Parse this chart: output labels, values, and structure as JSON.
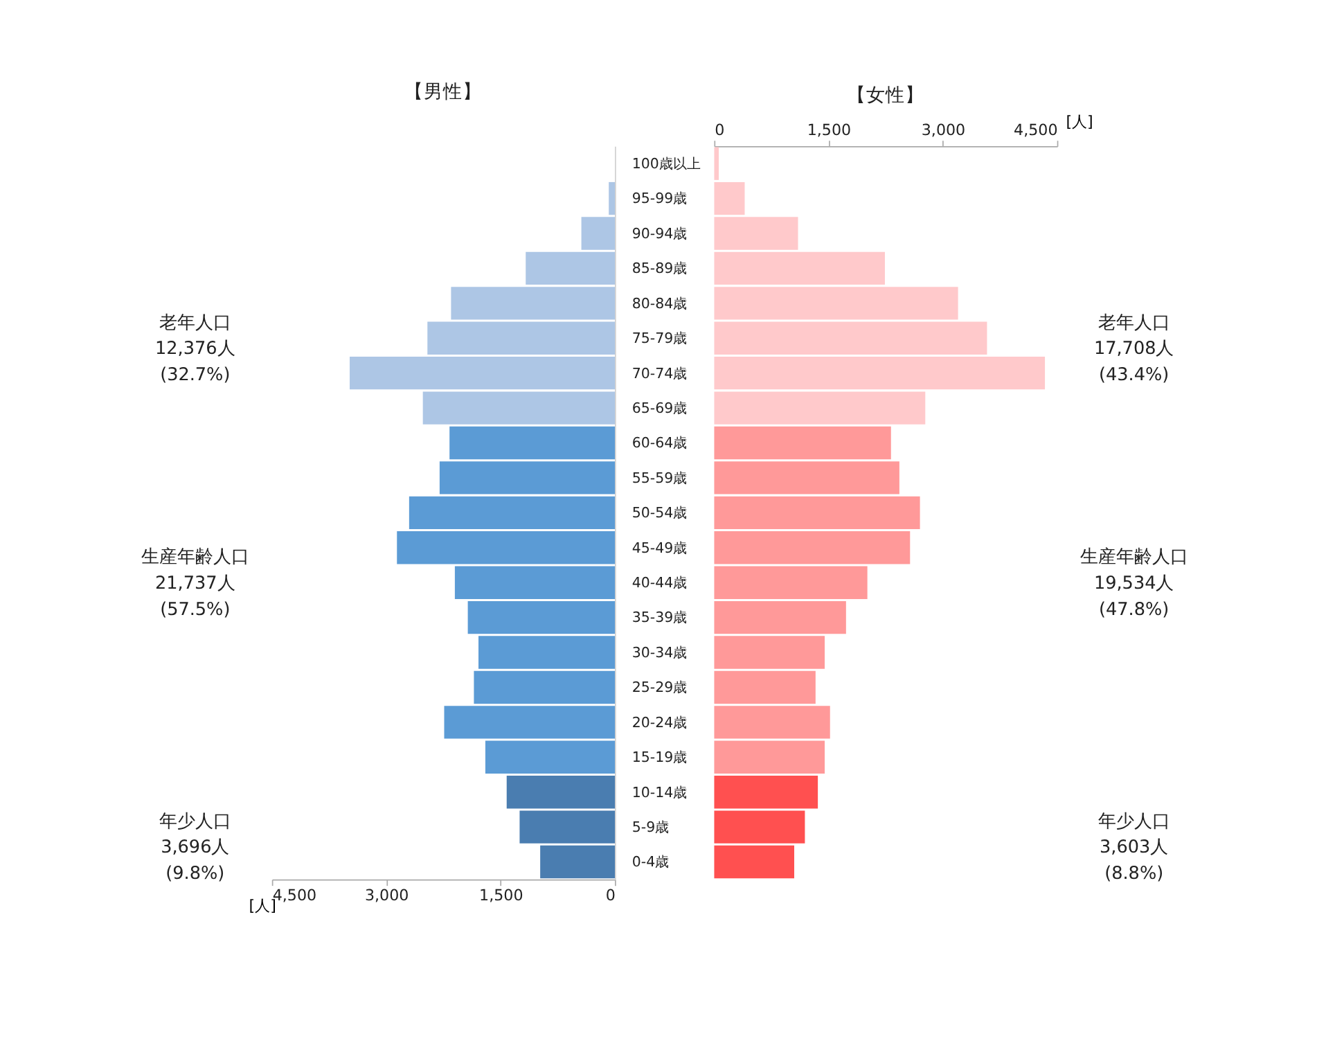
{
  "chart_data": [
    {
      "type": "bar",
      "orientation": "horizontal",
      "title": "【男性】",
      "xlabel": "[人]",
      "categories": [
        "100歳以上",
        "95-99歳",
        "90-94歳",
        "85-89歳",
        "80-84歳",
        "75-79歳",
        "70-74歳",
        "65-69歳",
        "60-64歳",
        "55-59歳",
        "50-54歳",
        "45-49歳",
        "40-44歳",
        "35-39歳",
        "30-34歳",
        "25-29歳",
        "20-24歳",
        "15-19歳",
        "10-14歳",
        "5-9歳",
        "0-4歳"
      ],
      "values": [
        null,
        80,
        440,
        1170,
        2150,
        2460,
        3480,
        2520,
        2170,
        2300,
        2700,
        2860,
        2100,
        1930,
        1790,
        1850,
        2240,
        1700,
        1420,
        1250,
        980
      ],
      "colors": [
        "#adc6e5",
        "#adc6e5",
        "#adc6e5",
        "#adc6e5",
        "#adc6e5",
        "#adc6e5",
        "#adc6e5",
        "#adc6e5",
        "#5b9bd5",
        "#5b9bd5",
        "#5b9bd5",
        "#5b9bd5",
        "#5b9bd5",
        "#5b9bd5",
        "#5b9bd5",
        "#5b9bd5",
        "#5b9bd5",
        "#5b9bd5",
        "#4a7db0",
        "#4a7db0",
        "#4a7db0"
      ],
      "xlim": [
        4500,
        0
      ],
      "xticks": [
        {
          "value": 4500,
          "label": "4,500"
        },
        {
          "value": 3000,
          "label": "3,000"
        },
        {
          "value": 1500,
          "label": "1,500"
        },
        0
      ],
      "annotations": [
        "老年人口\n12,376人\n(32.7%)",
        "生産年齢人口\n21,737人\n(57.5%)",
        "年少人口\n3,696人\n(9.8%)"
      ]
    },
    {
      "type": "bar",
      "orientation": "horizontal",
      "title": "【女性】",
      "xlabel": "[人]",
      "tick_labels": "x",
      "categories": [
        null,
        null,
        null,
        null,
        null,
        null,
        null,
        null,
        null,
        null,
        null,
        null,
        null,
        null,
        null,
        null,
        null,
        null,
        null,
        null,
        null
      ],
      "values": [
        60,
        400,
        1100,
        2240,
        3200,
        3580,
        4340,
        2770,
        2320,
        2430,
        2700,
        2570,
        2010,
        1730,
        1450,
        1330,
        1520,
        1450,
        1360,
        1190,
        1050
      ],
      "colors": [
        "#ffc9cb",
        "#ffc9cb",
        "#ffc9cb",
        "#ffc9cb",
        "#ffc9cb",
        "#ffc9cb",
        "#ffc9cb",
        "#ffc9cb",
        "#ff9999",
        "#ff9999",
        "#ff9999",
        "#ff9999",
        "#ff9999",
        "#ff9999",
        "#ff9999",
        "#ff9999",
        "#ff9999",
        "#ff9999",
        "#ff5050",
        "#ff5050",
        "#ff5050"
      ],
      "xlim": [
        0,
        4500
      ],
      "xticks": [
        0,
        {
          "value": 1500,
          "label": "1,500"
        },
        {
          "value": 3000,
          "label": "3,000"
        },
        {
          "value": 4500,
          "label": "4,500"
        }
      ],
      "annotations": [
        "老年人口\n17,708人\n(43.4%)",
        "生産年齢人口\n19,534人\n(47.8%)",
        "年少人口\n3,603人\n(8.8%)"
      ]
    }
  ]
}
